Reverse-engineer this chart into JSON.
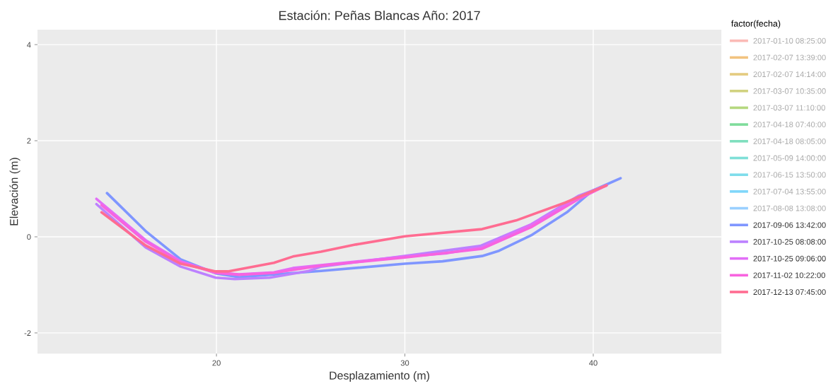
{
  "chart_data": {
    "type": "line",
    "title": "Estación: Peñas Blancas Año: 2017",
    "xlabel": "Desplazamiento (m)",
    "ylabel": "Elevación (m)",
    "legend_title": "factor(fecha)",
    "legend": "right",
    "grid": true,
    "marker": "none",
    "line_style": "solid",
    "xlim": [
      10.5,
      46.8
    ],
    "xticks": [
      20,
      30,
      40
    ],
    "ylim": [
      -2.43,
      4.31
    ],
    "yticks": [
      -2,
      0,
      2,
      4
    ],
    "series": [
      {
        "name": "2017-01-10 08:25:00",
        "color": "#f8766d"
      },
      {
        "name": "2017-02-07 13:39:00",
        "color": "#e58700"
      },
      {
        "name": "2017-02-07 14:14:00",
        "color": "#c99800"
      },
      {
        "name": "2017-03-07 10:35:00",
        "color": "#a3a500"
      },
      {
        "name": "2017-03-07 11:10:00",
        "color": "#6bb100"
      },
      {
        "name": "2017-04-18 07:40:00",
        "color": "#00ba38"
      },
      {
        "name": "2017-04-18 08:05:00",
        "color": "#00bf7d"
      },
      {
        "name": "2017-05-09 14:00:00",
        "color": "#00c0af"
      },
      {
        "name": "2017-06-15 13:50:00",
        "color": "#00bcd8"
      },
      {
        "name": "2017-07-04 13:55:00",
        "color": "#00b0f6"
      },
      {
        "name": "2017-08-08 13:08:00",
        "color": "#35a2ff"
      },
      {
        "name": "2017-09-06 13:42:00",
        "color": "#7f96ff",
        "x": [
          14.19,
          16.24,
          18.1,
          19.96,
          21.2,
          25.55,
          30,
          32,
          34.1,
          35,
          36.7,
          38.6,
          39.96,
          41.45
        ],
        "values": [
          0.91,
          0.12,
          -0.47,
          -0.76,
          -0.84,
          -0.71,
          -0.56,
          -0.51,
          -0.4,
          -0.29,
          0.03,
          0.51,
          0.96,
          1.22
        ]
      },
      {
        "name": "2017-10-25 08:08:00",
        "color": "#bc81ff",
        "x": [
          13.63,
          16.24,
          18.1,
          19.96,
          20.97,
          22.83,
          24.9,
          25.55,
          30,
          34,
          36.7,
          39.2,
          40.7
        ],
        "values": [
          0.68,
          -0.22,
          -0.62,
          -0.85,
          -0.88,
          -0.85,
          -0.71,
          -0.62,
          -0.4,
          -0.19,
          0.26,
          0.85,
          1.07
        ]
      },
      {
        "name": "2017-10-25 09:06:00",
        "color": "#e26ef7",
        "x": [
          13.63,
          16.24,
          18.1,
          19.96,
          21.2,
          23.05,
          24.06,
          25.55,
          30,
          32.25,
          34.1,
          36.7,
          39.2,
          40.7
        ],
        "values": [
          0.79,
          -0.07,
          -0.51,
          -0.74,
          -0.78,
          -0.74,
          -0.65,
          -0.59,
          -0.41,
          -0.34,
          -0.22,
          0.25,
          0.81,
          1.07
        ]
      },
      {
        "name": "2017-11-02 10:22:00",
        "color": "#f863df",
        "x": [
          13.9,
          16.24,
          18.1,
          19.96,
          21.2,
          23.05,
          25.55,
          30,
          34.1,
          36.7,
          39.2,
          40.7
        ],
        "values": [
          0.66,
          -0.1,
          -0.53,
          -0.75,
          -0.79,
          -0.75,
          -0.6,
          -0.43,
          -0.25,
          0.2,
          0.78,
          1.07
        ]
      },
      {
        "name": "2017-12-13 07:45:00",
        "color": "#ff6c91",
        "x": [
          13.9,
          16.24,
          18.1,
          19.96,
          20.6,
          23.05,
          24.06,
          25.55,
          27.4,
          30,
          34.1,
          35.9,
          38.5,
          40.7
        ],
        "values": [
          0.51,
          -0.18,
          -0.56,
          -0.72,
          -0.72,
          -0.54,
          -0.41,
          -0.31,
          -0.16,
          0.01,
          0.16,
          0.34,
          0.71,
          1.07
        ]
      }
    ]
  }
}
